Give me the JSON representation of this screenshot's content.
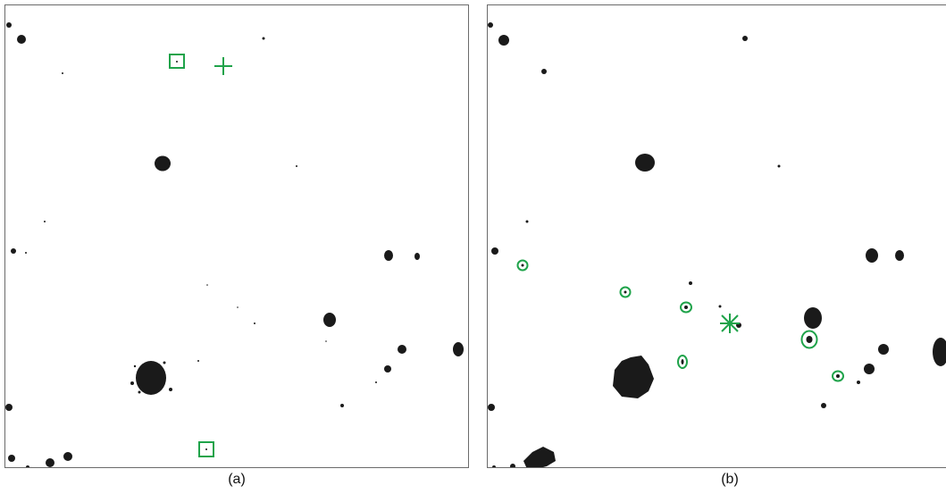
{
  "panels": [
    {
      "id": "a",
      "caption": "(a)"
    },
    {
      "id": "b",
      "caption": "(b)"
    }
  ],
  "marker_color": "#1fa34a",
  "blob_color": "#1a1a1a"
}
